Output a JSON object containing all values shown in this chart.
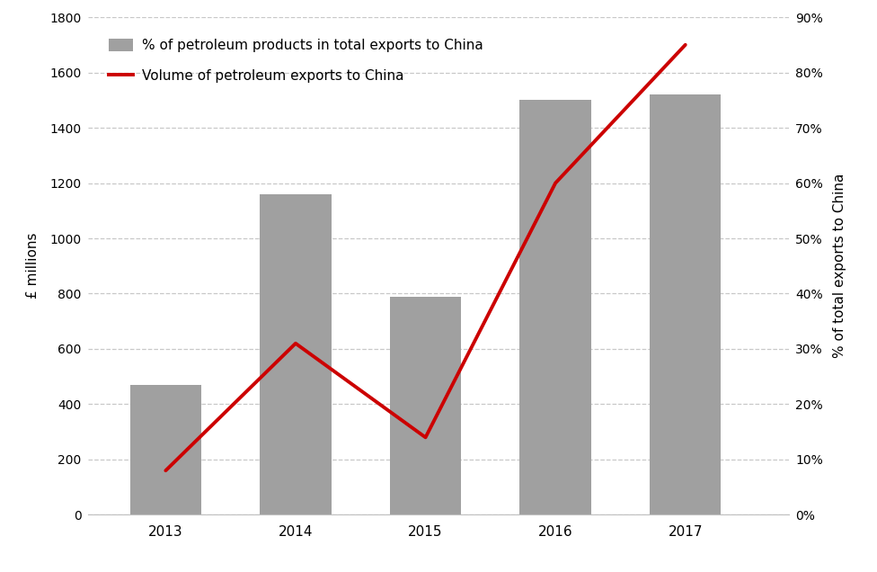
{
  "years": [
    2013,
    2014,
    2015,
    2016,
    2017
  ],
  "bar_values": [
    470,
    1160,
    790,
    1500,
    1520
  ],
  "line_values": [
    8,
    31,
    14,
    60,
    85
  ],
  "bar_color": "#a0a0a0",
  "line_color": "#cc0000",
  "bar_label": "% of petroleum products in total exports to China",
  "line_label": "Volume of petroleum exports to China",
  "ylabel_left": "£ millions",
  "ylabel_right": "% of total exports to China",
  "ylim_left": [
    0,
    1800
  ],
  "ylim_right": [
    0,
    90
  ],
  "yticks_left": [
    0,
    200,
    400,
    600,
    800,
    1000,
    1200,
    1400,
    1600,
    1800
  ],
  "yticks_right": [
    0,
    10,
    20,
    30,
    40,
    50,
    60,
    70,
    80,
    90
  ],
  "background_color": "#ffffff",
  "grid_color": "#c8c8c8",
  "bar_width": 0.55,
  "line_width": 2.8,
  "xlim": [
    2012.4,
    2017.8
  ]
}
